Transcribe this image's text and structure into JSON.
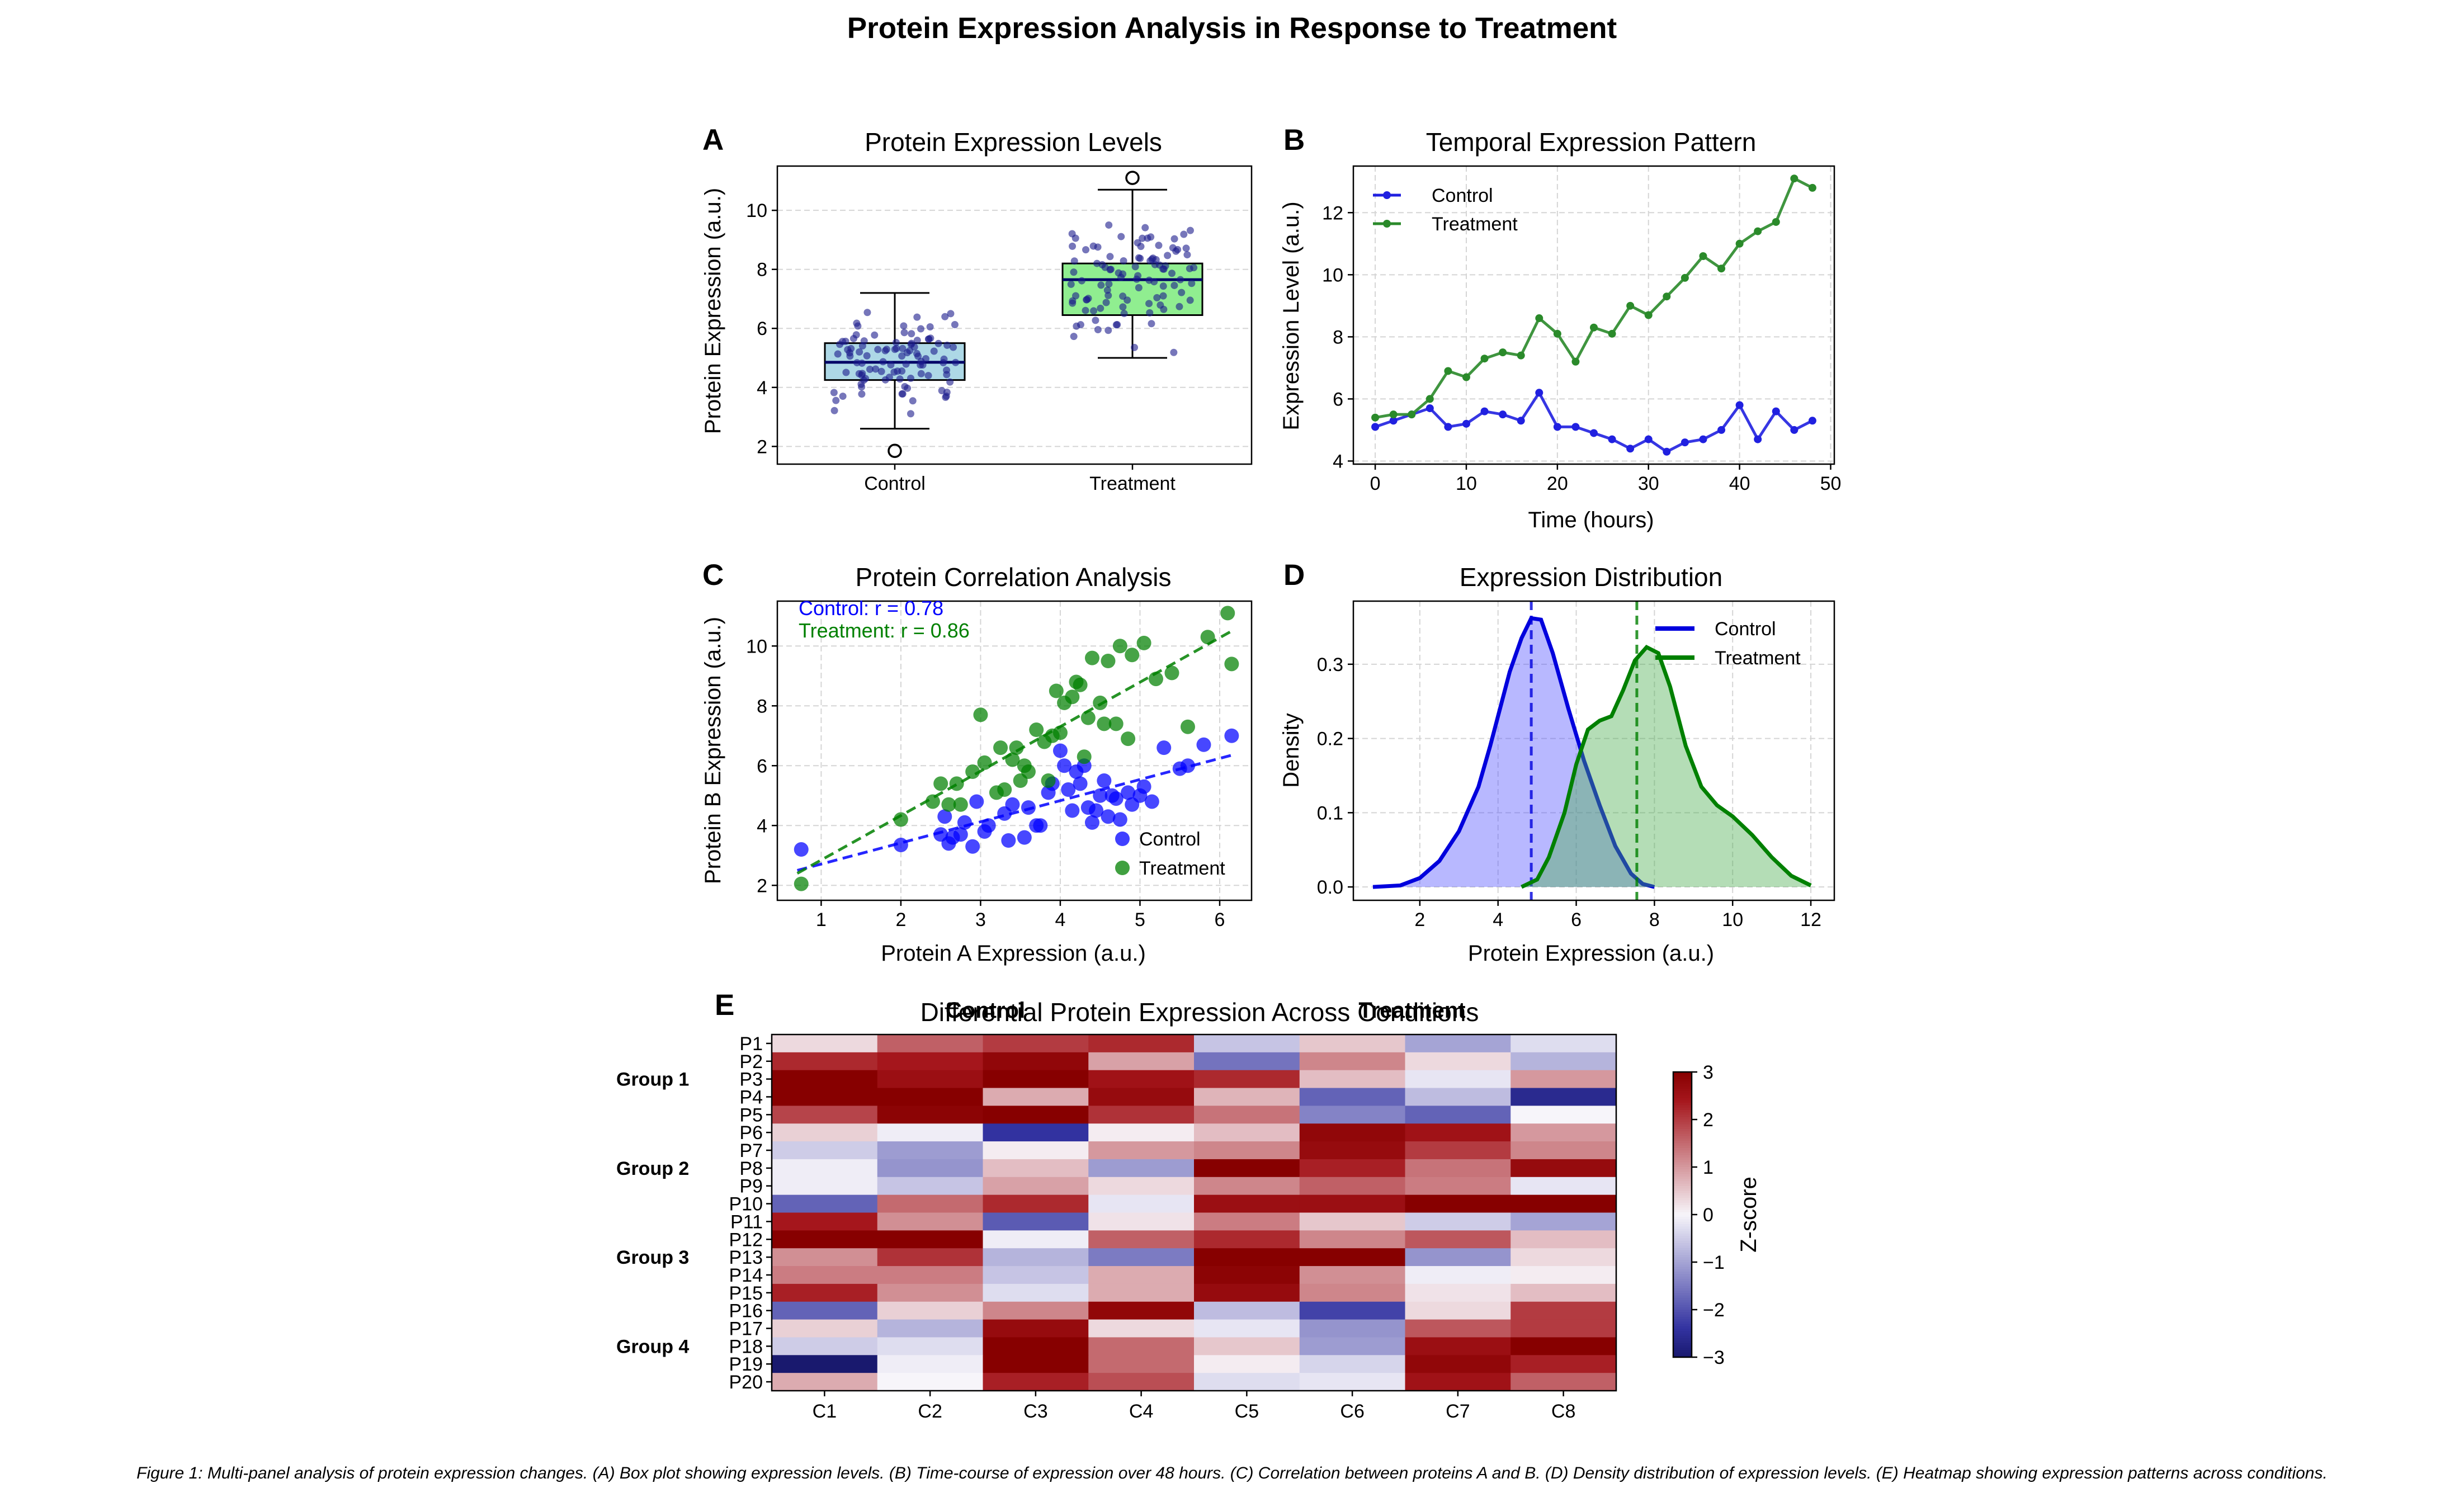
{
  "figure": {
    "title": "Protein Expression Analysis in Response to Treatment",
    "caption": "Figure 1: Multi-panel analysis of protein expression changes. (A) Box plot showing expression levels. (B) Time-course of expression over 48 hours. (C) Correlation between proteins A and B. (D) Density distribution of expression levels. (E) Heatmap showing expression patterns across conditions."
  },
  "colors": {
    "control_line": "#2020e0",
    "treatment_line": "#2a8a2a",
    "control_box": "#add8e6",
    "treatment_box": "#90ee90",
    "points": "#1a1a8c",
    "control_density": "#0000dd",
    "treatment_density": "#008000"
  },
  "chart_data": [
    {
      "panel": "A",
      "type": "box",
      "title": "Protein Expression Levels",
      "xlabel": "",
      "ylabel": "Protein Expression (a.u.)",
      "categories": [
        "Control",
        "Treatment"
      ],
      "ylim": [
        1.4,
        11.5
      ],
      "yticks": [
        2,
        4,
        6,
        8,
        10
      ],
      "grid": true,
      "boxes": [
        {
          "q1": 4.25,
          "median": 4.85,
          "q3": 5.5,
          "whisker_low": 2.6,
          "whisker_high": 7.2,
          "outliers": [
            1.85
          ]
        },
        {
          "q1": 6.45,
          "median": 7.65,
          "q3": 8.2,
          "whisker_low": 5.0,
          "whisker_high": 10.7,
          "outliers": [
            11.1
          ]
        }
      ]
    },
    {
      "panel": "B",
      "type": "line",
      "title": "Temporal Expression Pattern",
      "xlabel": "Time (hours)",
      "ylabel": "Expression Level (a.u.)",
      "xlim": [
        -2.4,
        50.4
      ],
      "ylim": [
        3.9,
        13.5
      ],
      "xticks": [
        0,
        10,
        20,
        30,
        40,
        50
      ],
      "yticks": [
        4,
        6,
        8,
        10,
        12
      ],
      "legend": "top-left",
      "grid": true,
      "x": [
        0,
        2,
        4,
        6,
        8,
        10,
        12,
        14,
        16,
        18,
        20,
        22,
        24,
        26,
        28,
        30,
        32,
        34,
        36,
        38,
        40,
        42,
        44,
        46,
        48
      ],
      "series": [
        {
          "name": "Control",
          "values": [
            5.1,
            5.3,
            5.5,
            5.7,
            5.1,
            5.2,
            5.6,
            5.5,
            5.3,
            6.2,
            5.1,
            5.1,
            4.9,
            4.7,
            4.4,
            4.7,
            4.3,
            4.6,
            4.7,
            5.0,
            5.8,
            4.7,
            5.6,
            5.0,
            5.3
          ]
        },
        {
          "name": "Treatment",
          "values": [
            5.4,
            5.5,
            5.5,
            6.0,
            6.9,
            6.7,
            7.3,
            7.5,
            7.4,
            8.6,
            8.1,
            7.2,
            8.3,
            8.1,
            9.0,
            8.7,
            9.3,
            9.9,
            10.6,
            10.2,
            11.0,
            11.4,
            11.7,
            13.1,
            12.8
          ]
        }
      ]
    },
    {
      "panel": "C",
      "type": "scatter",
      "title": "Protein Correlation Analysis",
      "xlabel": "Protein A Expression (a.u.)",
      "ylabel": "Protein B Expression (a.u.)",
      "xlim": [
        0.45,
        6.4
      ],
      "ylim": [
        1.5,
        11.5
      ],
      "xticks": [
        1,
        2,
        3,
        4,
        5,
        6
      ],
      "yticks": [
        2,
        4,
        6,
        8,
        10
      ],
      "legend": "bottom-right",
      "grid": true,
      "annotations": [
        {
          "text": "Control: r = 0.78",
          "color": "#0000ff"
        },
        {
          "text": "Treatment: r = 0.86",
          "color": "#008000"
        }
      ],
      "series": [
        {
          "name": "Control",
          "points": [
            [
              0.75,
              3.2
            ],
            [
              2.0,
              3.35
            ],
            [
              2.5,
              3.7
            ],
            [
              2.55,
              4.3
            ],
            [
              2.6,
              3.4
            ],
            [
              2.65,
              3.6
            ],
            [
              2.75,
              3.7
            ],
            [
              2.8,
              4.1
            ],
            [
              2.9,
              3.3
            ],
            [
              2.95,
              4.8
            ],
            [
              3.05,
              3.8
            ],
            [
              3.1,
              4.0
            ],
            [
              3.3,
              4.4
            ],
            [
              3.35,
              3.5
            ],
            [
              3.4,
              4.7
            ],
            [
              3.55,
              3.6
            ],
            [
              3.6,
              4.6
            ],
            [
              3.7,
              4.0
            ],
            [
              3.75,
              4.0
            ],
            [
              3.85,
              5.1
            ],
            [
              3.9,
              5.4
            ],
            [
              4.0,
              6.5
            ],
            [
              4.05,
              6.0
            ],
            [
              4.1,
              5.2
            ],
            [
              4.15,
              4.5
            ],
            [
              4.2,
              5.8
            ],
            [
              4.25,
              5.4
            ],
            [
              4.3,
              6.0
            ],
            [
              4.35,
              4.6
            ],
            [
              4.4,
              4.1
            ],
            [
              4.45,
              4.5
            ],
            [
              4.5,
              5.0
            ],
            [
              4.55,
              5.5
            ],
            [
              4.6,
              4.3
            ],
            [
              4.65,
              5.0
            ],
            [
              4.7,
              4.9
            ],
            [
              4.75,
              4.2
            ],
            [
              4.85,
              5.1
            ],
            [
              4.9,
              4.7
            ],
            [
              5.0,
              5.0
            ],
            [
              5.05,
              5.3
            ],
            [
              5.15,
              4.8
            ],
            [
              5.3,
              6.6
            ],
            [
              5.5,
              5.9
            ],
            [
              5.6,
              6.0
            ],
            [
              5.8,
              6.7
            ],
            [
              6.15,
              7.0
            ]
          ],
          "fit": [
            [
              0.7,
              2.5
            ],
            [
              6.15,
              6.35
            ]
          ]
        },
        {
          "name": "Treatment",
          "points": [
            [
              0.75,
              2.05
            ],
            [
              2.0,
              4.2
            ],
            [
              2.4,
              4.8
            ],
            [
              2.5,
              5.4
            ],
            [
              2.6,
              4.7
            ],
            [
              2.7,
              5.4
            ],
            [
              2.75,
              4.7
            ],
            [
              2.9,
              5.8
            ],
            [
              3.0,
              7.7
            ],
            [
              3.05,
              6.1
            ],
            [
              3.2,
              5.1
            ],
            [
              3.25,
              6.6
            ],
            [
              3.3,
              5.2
            ],
            [
              3.4,
              6.2
            ],
            [
              3.45,
              6.6
            ],
            [
              3.5,
              5.5
            ],
            [
              3.55,
              6.0
            ],
            [
              3.6,
              5.8
            ],
            [
              3.7,
              7.2
            ],
            [
              3.8,
              6.8
            ],
            [
              3.85,
              5.5
            ],
            [
              3.9,
              7.0
            ],
            [
              3.95,
              8.5
            ],
            [
              4.0,
              7.1
            ],
            [
              4.05,
              8.1
            ],
            [
              4.15,
              8.3
            ],
            [
              4.2,
              8.8
            ],
            [
              4.25,
              8.7
            ],
            [
              4.3,
              6.3
            ],
            [
              4.35,
              7.6
            ],
            [
              4.4,
              9.6
            ],
            [
              4.5,
              8.1
            ],
            [
              4.55,
              7.4
            ],
            [
              4.6,
              9.5
            ],
            [
              4.7,
              7.4
            ],
            [
              4.75,
              10.0
            ],
            [
              4.85,
              6.9
            ],
            [
              4.9,
              9.7
            ],
            [
              5.05,
              10.1
            ],
            [
              5.2,
              8.9
            ],
            [
              5.4,
              9.1
            ],
            [
              5.6,
              7.3
            ],
            [
              5.85,
              10.3
            ],
            [
              6.1,
              11.1
            ],
            [
              6.15,
              9.4
            ]
          ],
          "fit": [
            [
              0.7,
              2.4
            ],
            [
              6.15,
              10.5
            ]
          ]
        }
      ]
    },
    {
      "panel": "D",
      "type": "area",
      "title": "Expression Distribution",
      "xlabel": "Protein Expression (a.u.)",
      "ylabel": "Density",
      "xlim": [
        0.3,
        12.6
      ],
      "ylim": [
        -0.018,
        0.385
      ],
      "xticks": [
        2,
        4,
        6,
        8,
        10,
        12
      ],
      "yticks": [
        0.0,
        0.1,
        0.2,
        0.3
      ],
      "legend": "top-right",
      "grid": true,
      "series": [
        {
          "name": "Control",
          "mean_line": 4.85,
          "points": [
            [
              0.8,
              0.0
            ],
            [
              1.5,
              0.002
            ],
            [
              2.0,
              0.012
            ],
            [
              2.5,
              0.035
            ],
            [
              3.0,
              0.075
            ],
            [
              3.5,
              0.135
            ],
            [
              3.8,
              0.19
            ],
            [
              4.0,
              0.23
            ],
            [
              4.3,
              0.29
            ],
            [
              4.6,
              0.335
            ],
            [
              4.85,
              0.362
            ],
            [
              5.1,
              0.36
            ],
            [
              5.4,
              0.315
            ],
            [
              5.8,
              0.24
            ],
            [
              6.2,
              0.17
            ],
            [
              6.6,
              0.11
            ],
            [
              7.0,
              0.055
            ],
            [
              7.4,
              0.018
            ],
            [
              7.7,
              0.004
            ],
            [
              8.0,
              0.0
            ]
          ]
        },
        {
          "name": "Treatment",
          "mean_line": 7.55,
          "points": [
            [
              4.6,
              0.0
            ],
            [
              5.0,
              0.01
            ],
            [
              5.3,
              0.04
            ],
            [
              5.7,
              0.1
            ],
            [
              6.0,
              0.165
            ],
            [
              6.3,
              0.212
            ],
            [
              6.6,
              0.224
            ],
            [
              6.9,
              0.23
            ],
            [
              7.2,
              0.265
            ],
            [
              7.5,
              0.305
            ],
            [
              7.8,
              0.323
            ],
            [
              8.1,
              0.315
            ],
            [
              8.4,
              0.27
            ],
            [
              8.8,
              0.19
            ],
            [
              9.2,
              0.135
            ],
            [
              9.6,
              0.11
            ],
            [
              10.0,
              0.095
            ],
            [
              10.5,
              0.07
            ],
            [
              11.0,
              0.04
            ],
            [
              11.5,
              0.015
            ],
            [
              12.0,
              0.002
            ]
          ]
        }
      ]
    },
    {
      "panel": "E",
      "type": "heatmap",
      "title": "Differential Protein Expression Across Conditions",
      "column_group_labels": [
        "Control",
        "Treatment"
      ],
      "columns": [
        "C1",
        "C2",
        "C3",
        "C4",
        "C5",
        "C6",
        "C7",
        "C8"
      ],
      "rows": [
        "P1",
        "P2",
        "P3",
        "P4",
        "P5",
        "P6",
        "P7",
        "P8",
        "P9",
        "P10",
        "P11",
        "P12",
        "P13",
        "P14",
        "P15",
        "P16",
        "P17",
        "P18",
        "P19",
        "P20"
      ],
      "row_groups": [
        "Group 1",
        "Group 2",
        "Group 3",
        "Group 4"
      ],
      "colorbar": {
        "label": "Z-score",
        "min": -3,
        "max": 3,
        "ticks": [
          3,
          2,
          1,
          0,
          -1,
          -2,
          -3
        ]
      },
      "values": [
        [
          0.3,
          1.6,
          2.0,
          2.2,
          -0.6,
          0.5,
          -1.0,
          -0.3
        ],
        [
          2.2,
          2.4,
          2.8,
          0.9,
          -1.6,
          1.2,
          0.3,
          -0.8
        ],
        [
          3.0,
          2.6,
          3.0,
          2.5,
          2.2,
          0.6,
          -0.2,
          1.0
        ],
        [
          3.0,
          3.0,
          0.8,
          2.7,
          0.7,
          -1.8,
          -0.7,
          -2.6
        ],
        [
          1.9,
          2.9,
          3.0,
          2.1,
          1.4,
          -1.4,
          -1.8,
          0.0
        ],
        [
          0.4,
          -0.1,
          -2.4,
          0.1,
          0.6,
          2.8,
          2.5,
          1.0
        ],
        [
          -0.5,
          -1.1,
          0.1,
          1.0,
          1.2,
          2.7,
          2.0,
          1.2
        ],
        [
          -0.1,
          -1.2,
          0.6,
          -1.1,
          3.0,
          2.3,
          1.4,
          2.7
        ],
        [
          -0.1,
          -0.6,
          0.9,
          0.3,
          1.2,
          1.6,
          1.3,
          -0.2
        ],
        [
          -1.8,
          1.5,
          2.2,
          -0.2,
          2.6,
          2.6,
          3.0,
          3.0
        ],
        [
          2.4,
          1.1,
          -1.9,
          0.2,
          1.3,
          0.5,
          -0.5,
          -1.0
        ],
        [
          3.0,
          3.0,
          -0.1,
          1.6,
          2.2,
          1.2,
          1.7,
          0.6
        ],
        [
          1.1,
          2.1,
          -0.8,
          -1.5,
          3.0,
          3.0,
          -1.2,
          0.3
        ],
        [
          1.3,
          1.3,
          -0.6,
          0.8,
          2.9,
          1.1,
          -0.1,
          0.1
        ],
        [
          2.3,
          1.1,
          -0.3,
          0.8,
          2.7,
          1.2,
          0.2,
          0.6
        ],
        [
          -1.8,
          0.4,
          1.2,
          2.8,
          -0.7,
          -2.2,
          0.3,
          2.0
        ],
        [
          0.4,
          -0.8,
          2.7,
          0.3,
          -0.2,
          -1.2,
          1.7,
          2.0
        ],
        [
          -0.5,
          -0.3,
          3.0,
          1.5,
          0.5,
          -1.1,
          2.6,
          3.0
        ],
        [
          -3.0,
          -0.1,
          3.0,
          1.5,
          0.1,
          -0.4,
          2.8,
          2.3
        ],
        [
          0.8,
          0.0,
          2.3,
          1.8,
          -0.3,
          -0.2,
          2.5,
          1.6
        ]
      ]
    }
  ]
}
